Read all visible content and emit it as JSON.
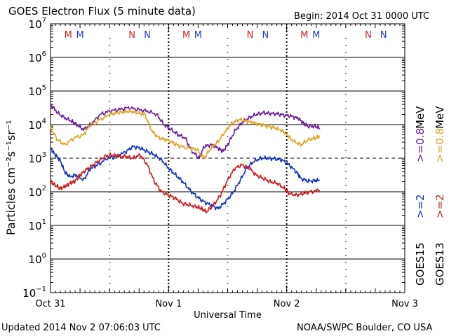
{
  "title": "GOES Electron Flux (5 minute data)",
  "begin": "Begin: 2014 Oct 31 0000 UTC",
  "updated": "Updated 2014 Nov  2 07:06:03 UTC",
  "credit": "NOAA/SWPC Boulder, CO USA",
  "chart_data": {
    "type": "line",
    "title": "GOES Electron Flux (5 minute data)",
    "xlabel": "Universal Time",
    "ylabel": "Particles cm⁻²s⁻¹sr⁻¹",
    "x_unit": "days since 2014 Oct 31 0000 UTC",
    "xlim": [
      0,
      3
    ],
    "ylim_log10": [
      -1,
      7
    ],
    "yscale": "log",
    "x_ticks": [
      {
        "x": 0,
        "label": "Oct 31"
      },
      {
        "x": 1,
        "label": "Nov 1"
      },
      {
        "x": 2,
        "label": "Nov 2"
      },
      {
        "x": 3,
        "label": "Nov 3"
      }
    ],
    "y_ticks": [
      {
        "exp": -1,
        "base": "10",
        "sup": "−1"
      },
      {
        "exp": 0,
        "base": "10",
        "sup": "0"
      },
      {
        "exp": 1,
        "base": "10",
        "sup": "1"
      },
      {
        "exp": 2,
        "base": "10",
        "sup": "2"
      },
      {
        "exp": 3,
        "base": "10",
        "sup": "3"
      },
      {
        "exp": 4,
        "base": "10",
        "sup": "4"
      },
      {
        "exp": 5,
        "base": "10",
        "sup": "5"
      },
      {
        "exp": 6,
        "base": "10",
        "sup": "6"
      },
      {
        "exp": 7,
        "base": "10",
        "sup": "7"
      }
    ],
    "grid_y_solid": [
      0,
      1,
      2,
      4,
      5,
      6
    ],
    "threshold_dashed": 3,
    "midnight_day_lines": [
      1,
      2
    ],
    "noon_day_lines": [
      0.5,
      1.5,
      2.5
    ],
    "markers": [
      {
        "x": 0.15,
        "label": "M",
        "color": "#cc2020"
      },
      {
        "x": 0.25,
        "label": "M",
        "color": "#2040c0"
      },
      {
        "x": 0.69,
        "label": "N",
        "color": "#cc2020"
      },
      {
        "x": 0.82,
        "label": "N",
        "color": "#2040c0"
      },
      {
        "x": 1.15,
        "label": "M",
        "color": "#cc2020"
      },
      {
        "x": 1.25,
        "label": "M",
        "color": "#2040c0"
      },
      {
        "x": 1.69,
        "label": "N",
        "color": "#cc2020"
      },
      {
        "x": 1.82,
        "label": "N",
        "color": "#2040c0"
      },
      {
        "x": 2.15,
        "label": "M",
        "color": "#cc2020"
      },
      {
        "x": 2.25,
        "label": "M",
        "color": "#2040c0"
      },
      {
        "x": 2.69,
        "label": "N",
        "color": "#cc2020"
      },
      {
        "x": 2.82,
        "label": "N",
        "color": "#2040c0"
      }
    ],
    "series": [
      {
        "name": ">=0.8 MeV",
        "color": "#6a1b9a",
        "points": [
          [
            0,
            4.6
          ],
          [
            0.06,
            4.35
          ],
          [
            0.12,
            4.2
          ],
          [
            0.18,
            4.1
          ],
          [
            0.22,
            4.0
          ],
          [
            0.28,
            3.85
          ],
          [
            0.34,
            4.0
          ],
          [
            0.42,
            4.3
          ],
          [
            0.5,
            4.4
          ],
          [
            0.58,
            4.45
          ],
          [
            0.66,
            4.5
          ],
          [
            0.74,
            4.45
          ],
          [
            0.82,
            4.4
          ],
          [
            0.9,
            4.3
          ],
          [
            0.96,
            4.0
          ],
          [
            1.02,
            3.85
          ],
          [
            1.08,
            3.7
          ],
          [
            1.14,
            3.6
          ],
          [
            1.2,
            3.2
          ],
          [
            1.26,
            3.0
          ],
          [
            1.3,
            3.35
          ],
          [
            1.36,
            3.4
          ],
          [
            1.42,
            3.3
          ],
          [
            1.46,
            3.2
          ],
          [
            1.5,
            3.4
          ],
          [
            1.56,
            3.8
          ],
          [
            1.62,
            4.05
          ],
          [
            1.68,
            4.2
          ],
          [
            1.74,
            4.3
          ],
          [
            1.8,
            4.35
          ],
          [
            1.86,
            4.33
          ],
          [
            1.92,
            4.32
          ],
          [
            1.98,
            4.28
          ],
          [
            2.04,
            4.25
          ],
          [
            2.1,
            4.18
          ],
          [
            2.14,
            4.05
          ],
          [
            2.18,
            3.95
          ],
          [
            2.24,
            3.95
          ],
          [
            2.28,
            3.9
          ]
        ]
      },
      {
        "name": ">=0.8 MeV",
        "color": "#e0a020",
        "points": [
          [
            0,
            3.9
          ],
          [
            0.06,
            3.55
          ],
          [
            0.12,
            3.4
          ],
          [
            0.2,
            3.6
          ],
          [
            0.28,
            3.7
          ],
          [
            0.34,
            4.0
          ],
          [
            0.42,
            4.15
          ],
          [
            0.5,
            4.3
          ],
          [
            0.56,
            4.35
          ],
          [
            0.62,
            4.38
          ],
          [
            0.68,
            4.4
          ],
          [
            0.74,
            4.35
          ],
          [
            0.8,
            4.3
          ],
          [
            0.86,
            3.8
          ],
          [
            0.92,
            3.6
          ],
          [
            0.98,
            3.55
          ],
          [
            1.04,
            3.45
          ],
          [
            1.1,
            3.35
          ],
          [
            1.18,
            3.3
          ],
          [
            1.24,
            3.25
          ],
          [
            1.3,
            3.0
          ],
          [
            1.36,
            3.3
          ],
          [
            1.42,
            3.5
          ],
          [
            1.48,
            3.8
          ],
          [
            1.54,
            4.05
          ],
          [
            1.6,
            4.15
          ],
          [
            1.66,
            4.1
          ],
          [
            1.72,
            4.05
          ],
          [
            1.78,
            4.0
          ],
          [
            1.84,
            3.95
          ],
          [
            1.9,
            3.9
          ],
          [
            1.96,
            3.82
          ],
          [
            2.0,
            3.7
          ],
          [
            2.06,
            3.5
          ],
          [
            2.12,
            3.4
          ],
          [
            2.18,
            3.55
          ],
          [
            2.24,
            3.6
          ],
          [
            2.28,
            3.65
          ]
        ]
      },
      {
        "name": ">=2 MeV",
        "color": "#1030c0",
        "points": [
          [
            0,
            3.3
          ],
          [
            0.04,
            3.1
          ],
          [
            0.08,
            2.95
          ],
          [
            0.12,
            2.6
          ],
          [
            0.16,
            2.45
          ],
          [
            0.22,
            2.5
          ],
          [
            0.28,
            2.35
          ],
          [
            0.34,
            2.7
          ],
          [
            0.4,
            2.8
          ],
          [
            0.48,
            3.0
          ],
          [
            0.56,
            3.05
          ],
          [
            0.64,
            3.2
          ],
          [
            0.7,
            3.35
          ],
          [
            0.76,
            3.3
          ],
          [
            0.82,
            3.2
          ],
          [
            0.88,
            3.1
          ],
          [
            0.94,
            2.95
          ],
          [
            1.0,
            2.7
          ],
          [
            1.06,
            2.5
          ],
          [
            1.12,
            2.3
          ],
          [
            1.18,
            2.05
          ],
          [
            1.24,
            1.85
          ],
          [
            1.3,
            1.7
          ],
          [
            1.36,
            1.6
          ],
          [
            1.42,
            1.5
          ],
          [
            1.48,
            1.7
          ],
          [
            1.54,
            1.95
          ],
          [
            1.6,
            2.3
          ],
          [
            1.66,
            2.7
          ],
          [
            1.72,
            2.9
          ],
          [
            1.78,
            3.0
          ],
          [
            1.84,
            3.0
          ],
          [
            1.9,
            2.98
          ],
          [
            1.96,
            2.95
          ],
          [
            2.02,
            2.8
          ],
          [
            2.08,
            2.6
          ],
          [
            2.12,
            2.4
          ],
          [
            2.18,
            2.32
          ],
          [
            2.24,
            2.33
          ],
          [
            2.28,
            2.35
          ]
        ]
      },
      {
        "name": ">=2 MeV",
        "color": "#d01818",
        "points": [
          [
            0,
            2.3
          ],
          [
            0.04,
            2.2
          ],
          [
            0.08,
            2.1
          ],
          [
            0.12,
            2.15
          ],
          [
            0.16,
            2.25
          ],
          [
            0.2,
            2.3
          ],
          [
            0.24,
            2.45
          ],
          [
            0.28,
            2.6
          ],
          [
            0.34,
            2.75
          ],
          [
            0.4,
            2.9
          ],
          [
            0.46,
            3.05
          ],
          [
            0.52,
            3.1
          ],
          [
            0.58,
            3.05
          ],
          [
            0.64,
            3.05
          ],
          [
            0.7,
            3.0
          ],
          [
            0.76,
            3.1
          ],
          [
            0.82,
            2.8
          ],
          [
            0.88,
            2.3
          ],
          [
            0.94,
            2.0
          ],
          [
            1.0,
            1.9
          ],
          [
            1.06,
            1.8
          ],
          [
            1.12,
            1.65
          ],
          [
            1.18,
            1.6
          ],
          [
            1.24,
            1.55
          ],
          [
            1.28,
            1.5
          ],
          [
            1.32,
            1.4
          ],
          [
            1.38,
            1.6
          ],
          [
            1.44,
            1.9
          ],
          [
            1.5,
            2.35
          ],
          [
            1.56,
            2.7
          ],
          [
            1.62,
            2.8
          ],
          [
            1.68,
            2.72
          ],
          [
            1.74,
            2.5
          ],
          [
            1.8,
            2.4
          ],
          [
            1.86,
            2.3
          ],
          [
            1.92,
            2.25
          ],
          [
            1.98,
            2.1
          ],
          [
            2.02,
            1.95
          ],
          [
            2.08,
            1.9
          ],
          [
            2.14,
            1.95
          ],
          [
            2.2,
            2.0
          ],
          [
            2.28,
            2.05
          ]
        ]
      }
    ],
    "legend": [
      {
        "text": "GOES15",
        "color": "#000000",
        "slot": 0
      },
      {
        "text": ">=2",
        "color": "#1030c0",
        "slot": 0
      },
      {
        "text": ">=0.8",
        "color": "#6a1b9a",
        "slot": 0
      },
      {
        "text": "MeV",
        "color": "#000000",
        "slot": 0
      },
      {
        "text": "GOES13",
        "color": "#000000",
        "slot": 1
      },
      {
        "text": ">=2",
        "color": "#d01818",
        "slot": 1
      },
      {
        "text": ">=0.8",
        "color": "#e0a020",
        "slot": 1
      },
      {
        "text": "MeV",
        "color": "#000000",
        "slot": 1
      }
    ]
  }
}
